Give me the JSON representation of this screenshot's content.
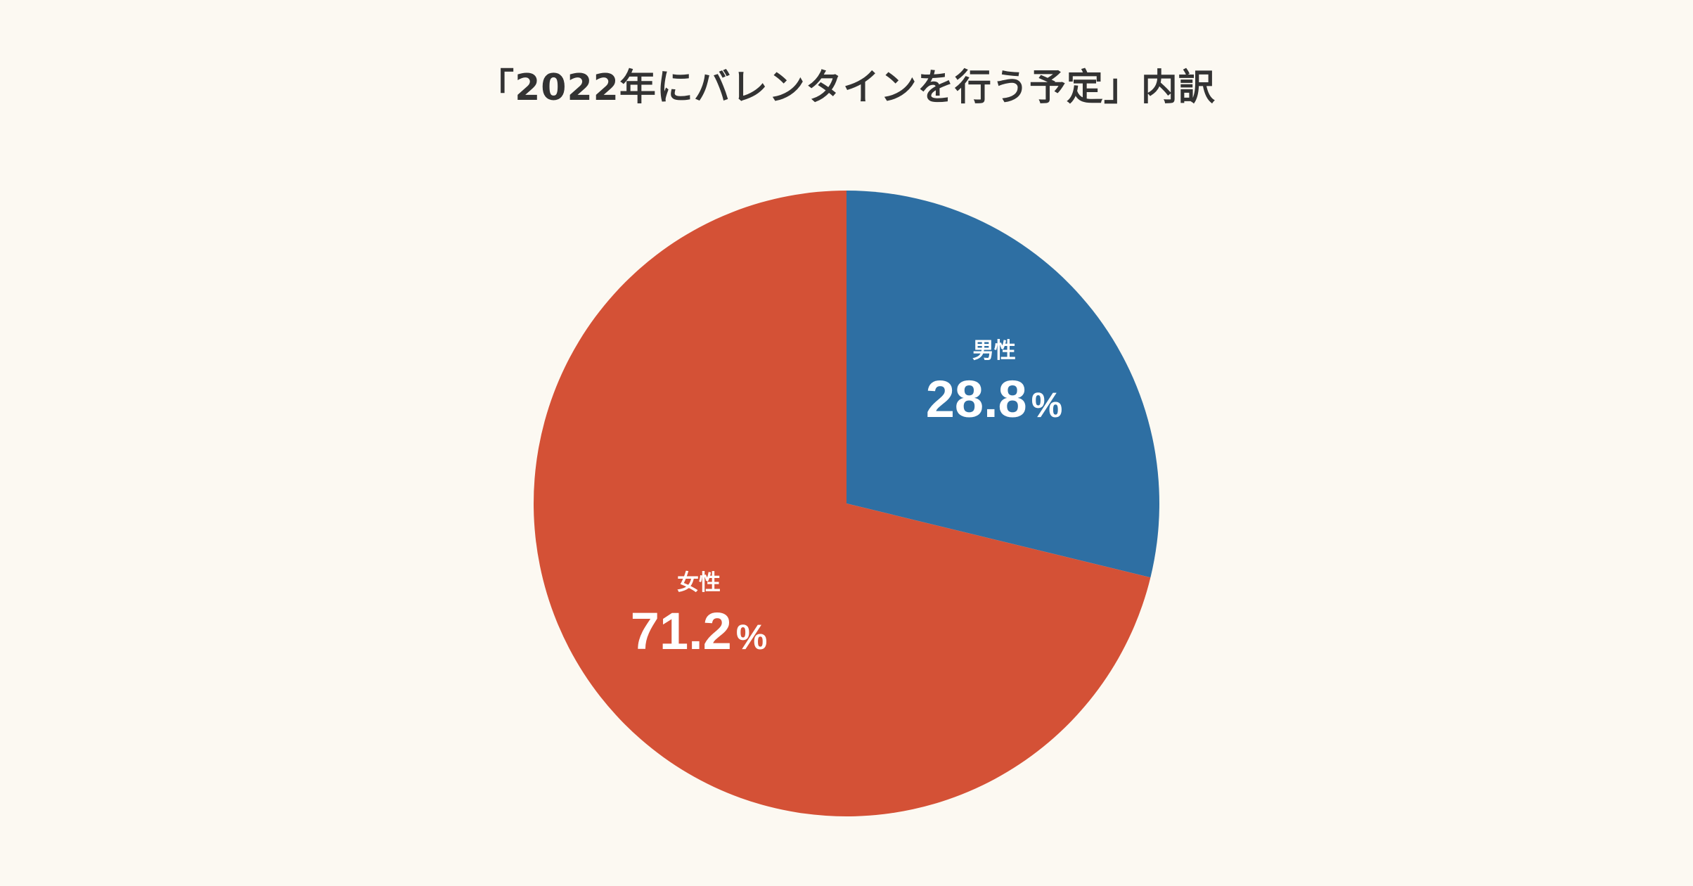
{
  "chart_data": {
    "type": "pie",
    "title": "「2022年にバレンタインを行う予定」内訳",
    "unit": "%",
    "slices": [
      {
        "label": "男性",
        "value": 28.8,
        "value_text": "28.8",
        "color": "#2e6fa3"
      },
      {
        "label": "女性",
        "value": 71.2,
        "value_text": "71.2",
        "color": "#d45136"
      }
    ],
    "start": "12 o'clock",
    "direction": "clockwise",
    "legend": "none",
    "labels_inside": true
  }
}
